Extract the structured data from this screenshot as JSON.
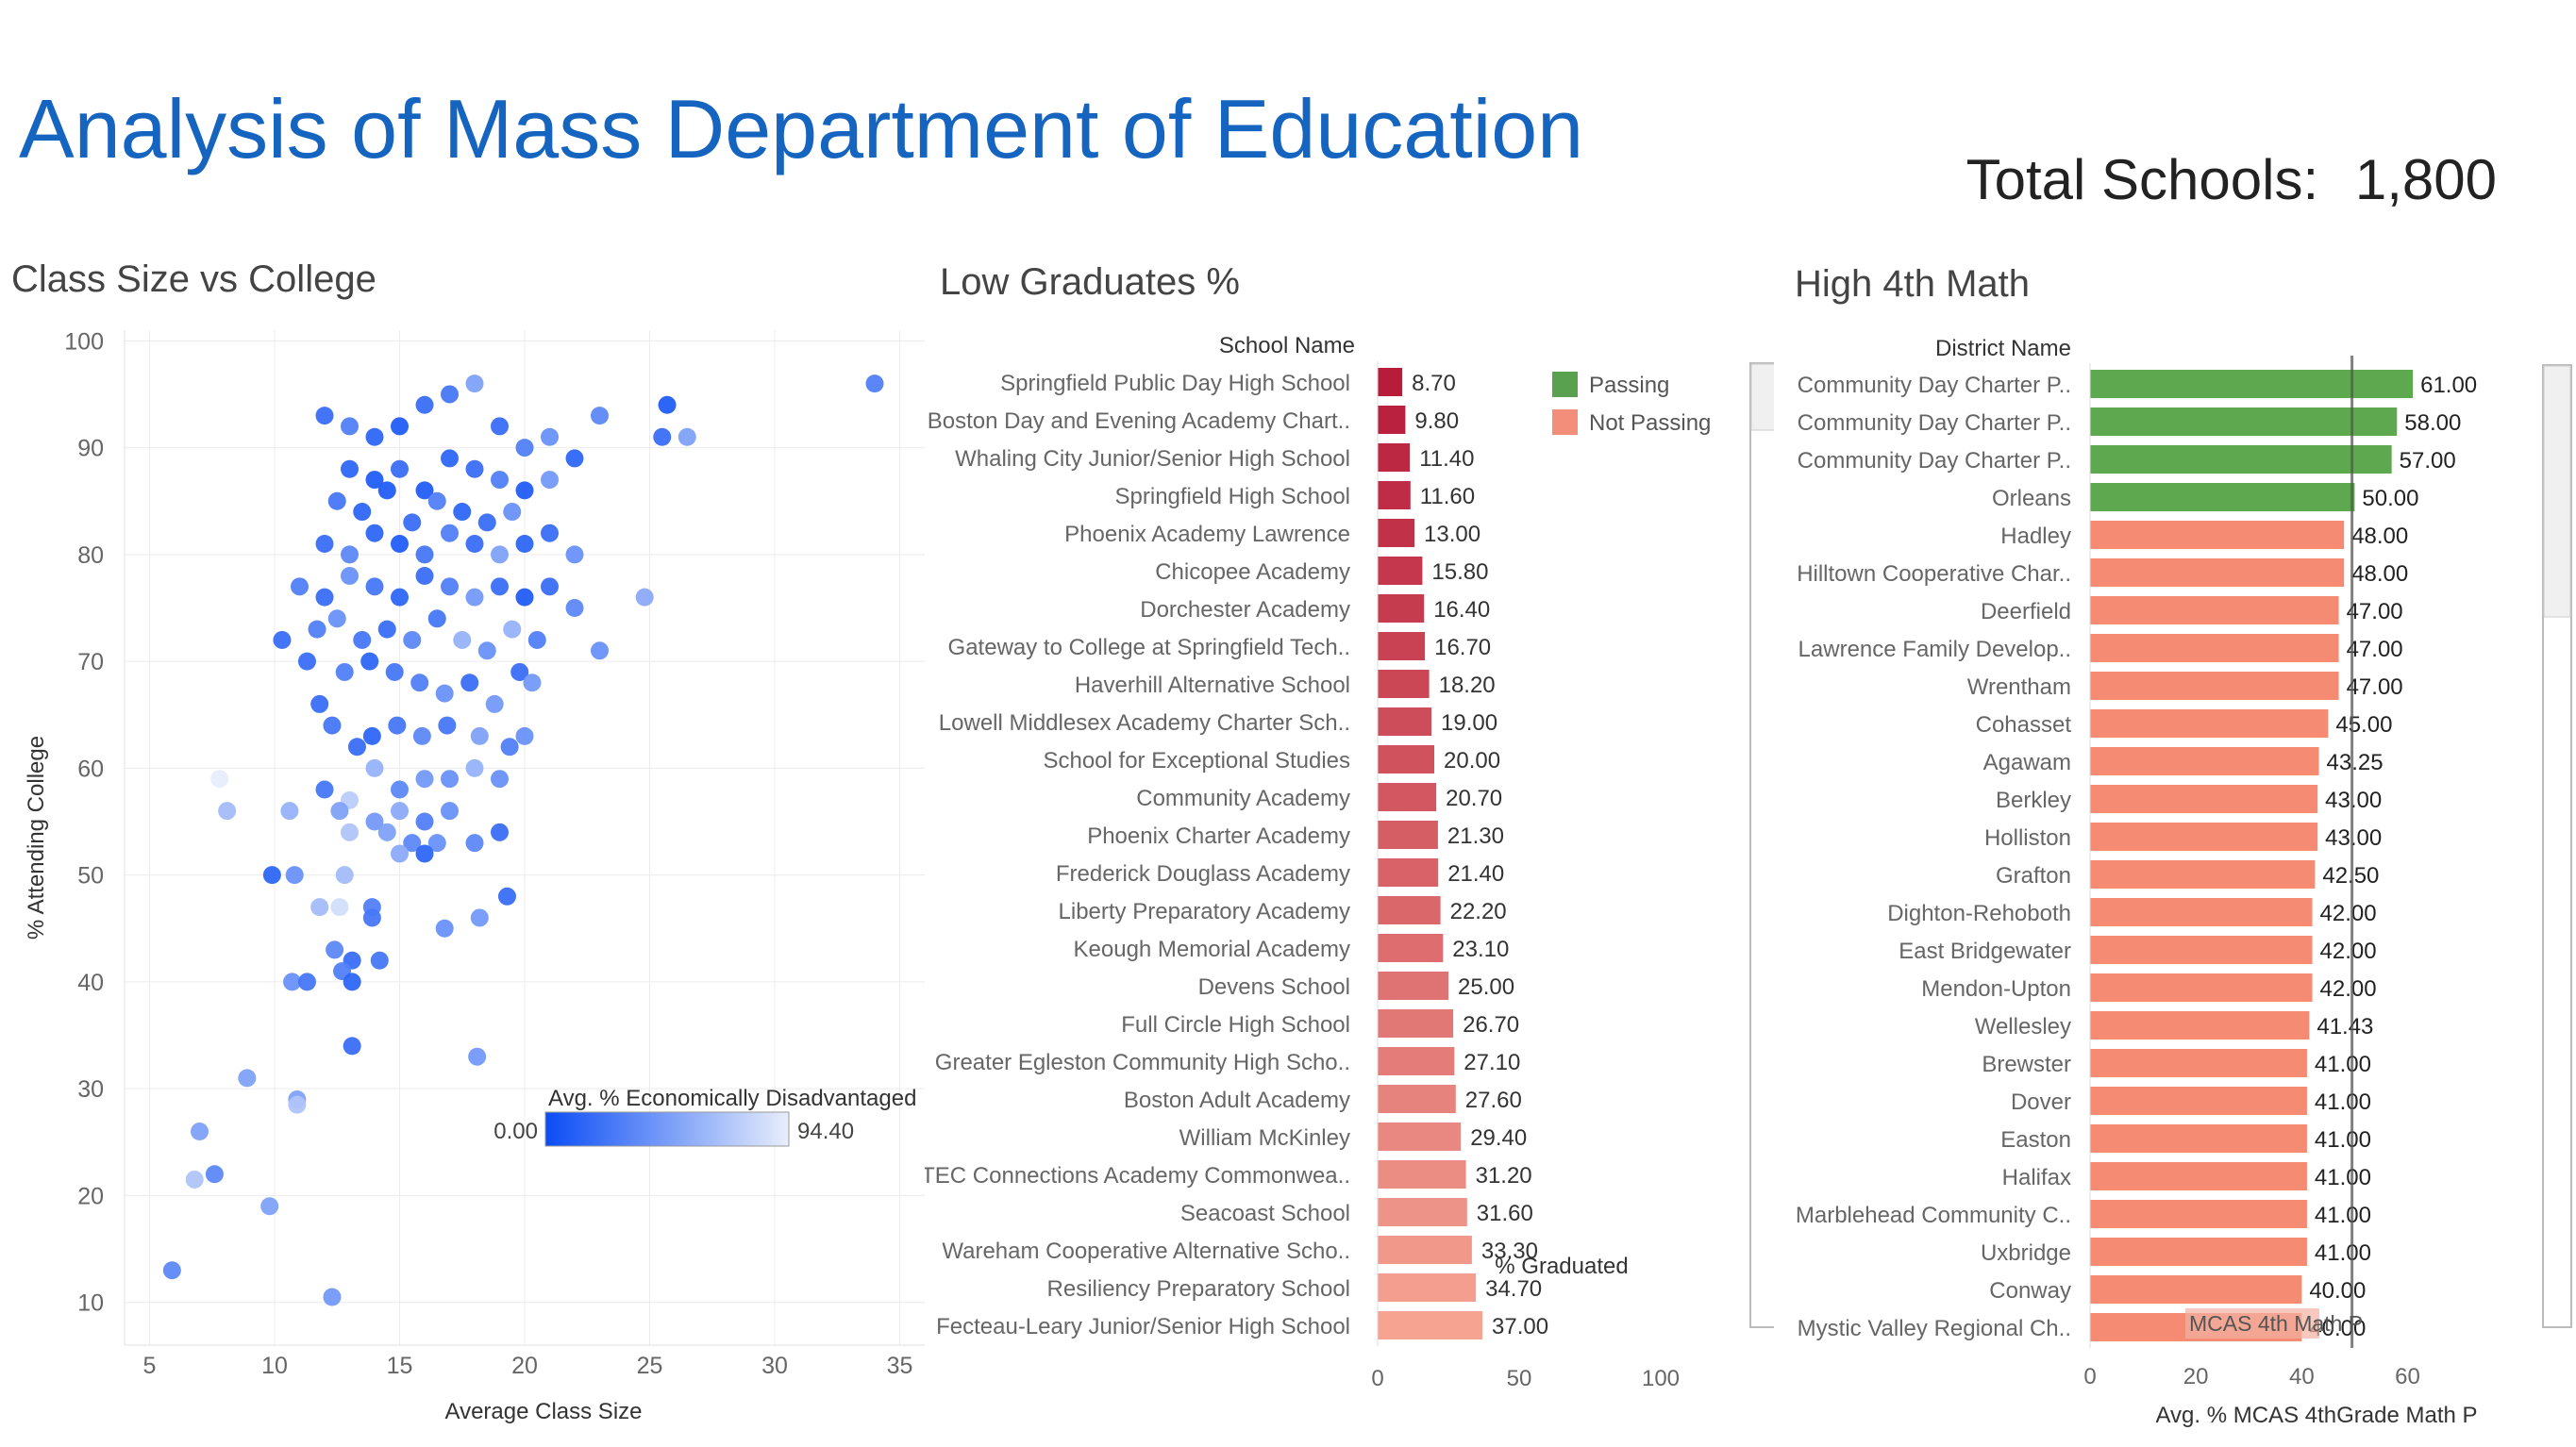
{
  "page": {
    "title": "Analysis of Mass Department of Education",
    "total_label": "Total Schools:",
    "total_value": "1,800"
  },
  "chart_data": [
    {
      "type": "scatter",
      "title": "Class Size vs College",
      "xlabel": "Average Class Size",
      "ylabel": "% Attending College",
      "xlim": [
        4,
        36
      ],
      "ylim": [
        6,
        101
      ],
      "xticks": [
        5,
        10,
        15,
        20,
        25,
        30,
        35
      ],
      "yticks": [
        10,
        20,
        30,
        40,
        50,
        60,
        70,
        80,
        90,
        100
      ],
      "grid": true,
      "color_legend": {
        "title": "Avg. % Economically Disadvantaged",
        "min": "0.00",
        "max": "94.40",
        "low_color": "#0b4cf5",
        "high_color": "#e8eefb"
      },
      "points": [
        {
          "x": 12,
          "y": 93,
          "c": 20
        },
        {
          "x": 13,
          "y": 92,
          "c": 30
        },
        {
          "x": 14,
          "y": 91,
          "c": 15
        },
        {
          "x": 15,
          "y": 92,
          "c": 10
        },
        {
          "x": 16,
          "y": 94,
          "c": 20
        },
        {
          "x": 17,
          "y": 95,
          "c": 25
        },
        {
          "x": 18,
          "y": 96,
          "c": 50
        },
        {
          "x": 19,
          "y": 92,
          "c": 20
        },
        {
          "x": 20,
          "y": 90,
          "c": 30
        },
        {
          "x": 21,
          "y": 91,
          "c": 40
        },
        {
          "x": 22,
          "y": 89,
          "c": 15
        },
        {
          "x": 23,
          "y": 93,
          "c": 35
        },
        {
          "x": 25.7,
          "y": 94,
          "c": 10
        },
        {
          "x": 25.5,
          "y": 91,
          "c": 20
        },
        {
          "x": 26.5,
          "y": 91,
          "c": 50
        },
        {
          "x": 34,
          "y": 96,
          "c": 30
        },
        {
          "x": 13,
          "y": 88,
          "c": 15
        },
        {
          "x": 14,
          "y": 87,
          "c": 10
        },
        {
          "x": 15,
          "y": 88,
          "c": 20
        },
        {
          "x": 16,
          "y": 86,
          "c": 10
        },
        {
          "x": 17,
          "y": 89,
          "c": 15
        },
        {
          "x": 18,
          "y": 88,
          "c": 20
        },
        {
          "x": 19,
          "y": 87,
          "c": 30
        },
        {
          "x": 20,
          "y": 86,
          "c": 10
        },
        {
          "x": 21,
          "y": 87,
          "c": 45
        },
        {
          "x": 12.5,
          "y": 85,
          "c": 25
        },
        {
          "x": 13.5,
          "y": 84,
          "c": 15
        },
        {
          "x": 14.5,
          "y": 86,
          "c": 10
        },
        {
          "x": 15.5,
          "y": 83,
          "c": 20
        },
        {
          "x": 16.5,
          "y": 85,
          "c": 30
        },
        {
          "x": 17.5,
          "y": 84,
          "c": 15
        },
        {
          "x": 18.5,
          "y": 83,
          "c": 20
        },
        {
          "x": 19.5,
          "y": 84,
          "c": 40
        },
        {
          "x": 12,
          "y": 81,
          "c": 20
        },
        {
          "x": 13,
          "y": 80,
          "c": 35
        },
        {
          "x": 14,
          "y": 82,
          "c": 15
        },
        {
          "x": 15,
          "y": 81,
          "c": 10
        },
        {
          "x": 16,
          "y": 80,
          "c": 25
        },
        {
          "x": 17,
          "y": 82,
          "c": 30
        },
        {
          "x": 18,
          "y": 81,
          "c": 20
        },
        {
          "x": 19,
          "y": 80,
          "c": 50
        },
        {
          "x": 20,
          "y": 81,
          "c": 15
        },
        {
          "x": 21,
          "y": 82,
          "c": 20
        },
        {
          "x": 22,
          "y": 80,
          "c": 40
        },
        {
          "x": 11,
          "y": 77,
          "c": 30
        },
        {
          "x": 12,
          "y": 76,
          "c": 20
        },
        {
          "x": 13,
          "y": 78,
          "c": 40
        },
        {
          "x": 14,
          "y": 77,
          "c": 25
        },
        {
          "x": 15,
          "y": 76,
          "c": 15
        },
        {
          "x": 16,
          "y": 78,
          "c": 20
        },
        {
          "x": 17,
          "y": 77,
          "c": 30
        },
        {
          "x": 18,
          "y": 76,
          "c": 45
        },
        {
          "x": 19,
          "y": 77,
          "c": 20
        },
        {
          "x": 20,
          "y": 76,
          "c": 10
        },
        {
          "x": 21,
          "y": 77,
          "c": 20
        },
        {
          "x": 22,
          "y": 75,
          "c": 35
        },
        {
          "x": 24.8,
          "y": 76,
          "c": 55
        },
        {
          "x": 10.3,
          "y": 72,
          "c": 20
        },
        {
          "x": 11.7,
          "y": 73,
          "c": 30
        },
        {
          "x": 12.5,
          "y": 74,
          "c": 40
        },
        {
          "x": 13.5,
          "y": 72,
          "c": 25
        },
        {
          "x": 14.5,
          "y": 73,
          "c": 20
        },
        {
          "x": 15.5,
          "y": 72,
          "c": 35
        },
        {
          "x": 16.5,
          "y": 74,
          "c": 25
        },
        {
          "x": 17.5,
          "y": 72,
          "c": 60
        },
        {
          "x": 18.5,
          "y": 71,
          "c": 40
        },
        {
          "x": 19.5,
          "y": 73,
          "c": 60
        },
        {
          "x": 20.5,
          "y": 72,
          "c": 30
        },
        {
          "x": 23,
          "y": 71,
          "c": 40
        },
        {
          "x": 11.3,
          "y": 70,
          "c": 20
        },
        {
          "x": 12.8,
          "y": 69,
          "c": 30
        },
        {
          "x": 13.8,
          "y": 70,
          "c": 15
        },
        {
          "x": 14.8,
          "y": 69,
          "c": 25
        },
        {
          "x": 15.8,
          "y": 68,
          "c": 30
        },
        {
          "x": 16.8,
          "y": 67,
          "c": 40
        },
        {
          "x": 17.8,
          "y": 68,
          "c": 20
        },
        {
          "x": 18.8,
          "y": 66,
          "c": 45
        },
        {
          "x": 19.8,
          "y": 69,
          "c": 20
        },
        {
          "x": 20.3,
          "y": 68,
          "c": 45
        },
        {
          "x": 11.8,
          "y": 66,
          "c": 20
        },
        {
          "x": 12.3,
          "y": 64,
          "c": 25
        },
        {
          "x": 13.3,
          "y": 62,
          "c": 20
        },
        {
          "x": 13.9,
          "y": 63,
          "c": 15
        },
        {
          "x": 14.9,
          "y": 64,
          "c": 25
        },
        {
          "x": 15.9,
          "y": 63,
          "c": 35
        },
        {
          "x": 16.9,
          "y": 64,
          "c": 25
        },
        {
          "x": 18.2,
          "y": 63,
          "c": 50
        },
        {
          "x": 19.4,
          "y": 62,
          "c": 30
        },
        {
          "x": 20,
          "y": 63,
          "c": 40
        },
        {
          "x": 7.8,
          "y": 59,
          "c": 94
        },
        {
          "x": 14,
          "y": 60,
          "c": 60
        },
        {
          "x": 15,
          "y": 58,
          "c": 35
        },
        {
          "x": 16,
          "y": 59,
          "c": 45
        },
        {
          "x": 17,
          "y": 59,
          "c": 40
        },
        {
          "x": 18,
          "y": 60,
          "c": 60
        },
        {
          "x": 19,
          "y": 59,
          "c": 40
        },
        {
          "x": 12,
          "y": 58,
          "c": 25
        },
        {
          "x": 13,
          "y": 57,
          "c": 75
        },
        {
          "x": 8.1,
          "y": 56,
          "c": 65
        },
        {
          "x": 10.6,
          "y": 56,
          "c": 60
        },
        {
          "x": 12.6,
          "y": 56,
          "c": 50
        },
        {
          "x": 14,
          "y": 55,
          "c": 45
        },
        {
          "x": 15,
          "y": 56,
          "c": 55
        },
        {
          "x": 16,
          "y": 55,
          "c": 30
        },
        {
          "x": 17,
          "y": 56,
          "c": 40
        },
        {
          "x": 13,
          "y": 54,
          "c": 70
        },
        {
          "x": 14.5,
          "y": 54,
          "c": 50
        },
        {
          "x": 15.5,
          "y": 53,
          "c": 35
        },
        {
          "x": 16.5,
          "y": 53,
          "c": 40
        },
        {
          "x": 18,
          "y": 53,
          "c": 35
        },
        {
          "x": 19,
          "y": 54,
          "c": 20
        },
        {
          "x": 15,
          "y": 52,
          "c": 55
        },
        {
          "x": 16,
          "y": 52,
          "c": 15
        },
        {
          "x": 9.9,
          "y": 50,
          "c": 15
        },
        {
          "x": 10.8,
          "y": 50,
          "c": 40
        },
        {
          "x": 12.8,
          "y": 50,
          "c": 65
        },
        {
          "x": 19.3,
          "y": 48,
          "c": 20
        },
        {
          "x": 11.8,
          "y": 47,
          "c": 65
        },
        {
          "x": 12.6,
          "y": 47,
          "c": 85
        },
        {
          "x": 13.9,
          "y": 47,
          "c": 30
        },
        {
          "x": 13.9,
          "y": 46,
          "c": 25
        },
        {
          "x": 16.8,
          "y": 45,
          "c": 40
        },
        {
          "x": 18.2,
          "y": 46,
          "c": 45
        },
        {
          "x": 12.4,
          "y": 43,
          "c": 35
        },
        {
          "x": 13.1,
          "y": 42,
          "c": 20
        },
        {
          "x": 14.2,
          "y": 42,
          "c": 25
        },
        {
          "x": 12.7,
          "y": 41,
          "c": 30
        },
        {
          "x": 13.1,
          "y": 40,
          "c": 15
        },
        {
          "x": 10.7,
          "y": 40,
          "c": 40
        },
        {
          "x": 11.3,
          "y": 40,
          "c": 25
        },
        {
          "x": 13.1,
          "y": 34,
          "c": 20
        },
        {
          "x": 18.1,
          "y": 33,
          "c": 45
        },
        {
          "x": 8.9,
          "y": 31,
          "c": 50
        },
        {
          "x": 10.9,
          "y": 29,
          "c": 50
        },
        {
          "x": 10.9,
          "y": 28.5,
          "c": 70
        },
        {
          "x": 7.0,
          "y": 26,
          "c": 50
        },
        {
          "x": 7.6,
          "y": 22,
          "c": 35
        },
        {
          "x": 6.8,
          "y": 21.5,
          "c": 70
        },
        {
          "x": 9.8,
          "y": 19,
          "c": 50
        },
        {
          "x": 5.9,
          "y": 13,
          "c": 35
        },
        {
          "x": 12.3,
          "y": 10.5,
          "c": 45
        }
      ]
    },
    {
      "type": "bar",
      "orientation": "horizontal",
      "title": "Low Graduates %",
      "category_header": "School Name",
      "xlabel": "% Graduated",
      "xlim": [
        0,
        120
      ],
      "xticks": [
        0,
        50,
        100
      ],
      "legend": [
        {
          "label": "Passing",
          "color": "#59a14f"
        },
        {
          "label": "Not Passing",
          "color": "#f28e79"
        }
      ],
      "categories": [
        "Springfield Public Day High School",
        "Boston Day and Evening Academy Chart..",
        "Whaling City Junior/Senior High School",
        "Springfield High School",
        "Phoenix Academy Lawrence",
        "Chicopee Academy",
        "Dorchester Academy",
        "Gateway to College at Springfield Tech..",
        "Haverhill Alternative School",
        "Lowell Middlesex Academy Charter Sch..",
        "School for Exceptional Studies",
        "Community Academy",
        "Phoenix Charter Academy",
        "Frederick Douglass Academy",
        "Liberty Preparatory Academy",
        "Keough Memorial Academy",
        "Devens School",
        "Full Circle High School",
        "Greater Egleston Community High Scho..",
        "Boston Adult Academy",
        "William McKinley",
        "TEC Connections Academy Commonwea..",
        "Seacoast School",
        "Wareham Cooperative Alternative Scho..",
        "Resiliency Preparatory School",
        "Fecteau-Leary Junior/Senior High School"
      ],
      "values": [
        8.7,
        9.8,
        11.4,
        11.6,
        13.0,
        15.8,
        16.4,
        16.7,
        18.2,
        19.0,
        20.0,
        20.7,
        21.3,
        21.4,
        22.2,
        23.1,
        25.0,
        26.7,
        27.1,
        27.6,
        29.4,
        31.2,
        31.6,
        33.3,
        34.7,
        37.0
      ],
      "labels": [
        "8.70",
        "9.80",
        "11.40",
        "11.60",
        "13.00",
        "15.80",
        "16.40",
        "16.70",
        "18.20",
        "19.00",
        "20.00",
        "20.70",
        "21.30",
        "21.40",
        "22.20",
        "23.10",
        "25.00",
        "26.70",
        "27.10",
        "27.60",
        "29.40",
        "31.20",
        "31.60",
        "33.30",
        "34.70",
        "37.00"
      ]
    },
    {
      "type": "bar",
      "orientation": "horizontal",
      "title": "High 4th Math",
      "category_header": "District Name",
      "xlabel": "Avg. % MCAS 4thGrade Math P",
      "xlim": [
        0,
        74
      ],
      "xticks": [
        0,
        20,
        40,
        60
      ],
      "reference_line": {
        "value": 49.5,
        "label": "MCAS 4th Math P"
      },
      "categories": [
        "Community Day Charter P..",
        "Community Day Charter P..",
        "Community Day Charter P..",
        "Orleans",
        "Hadley",
        "Hilltown Cooperative Char..",
        "Deerfield",
        "Lawrence Family Develop..",
        "Wrentham",
        "Cohasset",
        "Agawam",
        "Berkley",
        "Holliston",
        "Grafton",
        "Dighton-Rehoboth",
        "East Bridgewater",
        "Mendon-Upton",
        "Wellesley",
        "Brewster",
        "Dover",
        "Easton",
        "Halifax",
        "Marblehead Community C..",
        "Uxbridge",
        "Conway",
        "Mystic Valley Regional Ch.."
      ],
      "values": [
        61.0,
        58.0,
        57.0,
        50.0,
        48.0,
        48.0,
        47.0,
        47.0,
        47.0,
        45.0,
        43.25,
        43.0,
        43.0,
        42.5,
        42.0,
        42.0,
        42.0,
        41.43,
        41.0,
        41.0,
        41.0,
        41.0,
        41.0,
        41.0,
        40.0,
        40.0
      ],
      "labels": [
        "61.00",
        "58.00",
        "57.00",
        "50.00",
        "48.00",
        "48.00",
        "47.00",
        "47.00",
        "47.00",
        "45.00",
        "43.25",
        "43.00",
        "43.00",
        "42.50",
        "42.00",
        "42.00",
        "42.00",
        "41.43",
        "41.00",
        "41.00",
        "41.00",
        "41.00",
        "41.00",
        "41.00",
        "40.00",
        "40.00"
      ],
      "status": [
        "Passing",
        "Passing",
        "Passing",
        "Passing",
        "Not Passing",
        "Not Passing",
        "Not Passing",
        "Not Passing",
        "Not Passing",
        "Not Passing",
        "Not Passing",
        "Not Passing",
        "Not Passing",
        "Not Passing",
        "Not Passing",
        "Not Passing",
        "Not Passing",
        "Not Passing",
        "Not Passing",
        "Not Passing",
        "Not Passing",
        "Not Passing",
        "Not Passing",
        "Not Passing",
        "Not Passing",
        "Not Passing"
      ]
    }
  ]
}
